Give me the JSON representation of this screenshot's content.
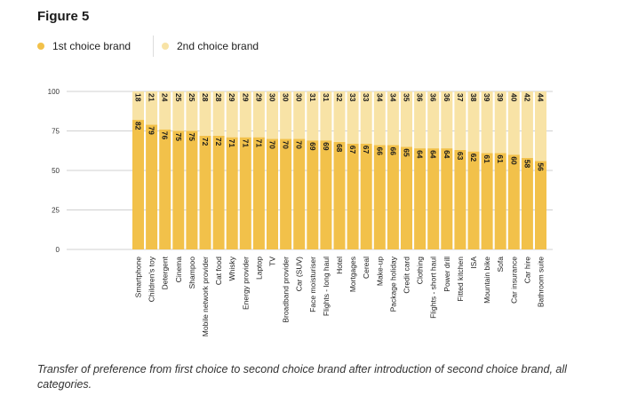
{
  "figure_label": "Figure 5",
  "caption": "Transfer of preference from first choice to second choice brand after introduction of second choice brand, all categories.",
  "colors": {
    "first": "#f2c14a",
    "second": "#f8e3a6",
    "grid": "#d0d0d0",
    "axis_text": "#333333"
  },
  "chart_data": {
    "type": "bar",
    "stacked": true,
    "categories": [
      "Smartphone",
      "Children's toy",
      "Detergent",
      "Cinema",
      "Shampoo",
      "Mobile network provider",
      "Cat food",
      "Whisky",
      "Energy provider",
      "Laptop",
      "TV",
      "Broadband provider",
      "Car (SUV)",
      "Face moisturiser",
      "Flights - long haul",
      "Hotel",
      "Mortgages",
      "Cereal",
      "Make-up",
      "Package holiday",
      "Credit card",
      "Clothing",
      "Flights - short haul",
      "Power drill",
      "Fitted kitchen",
      "ISA",
      "Mountain bike",
      "Sofa",
      "Car insurance",
      "Car hire",
      "Bathroom suite"
    ],
    "series": [
      {
        "name": "1st choice brand",
        "values": [
          82,
          79,
          76,
          75,
          75,
          72,
          72,
          71,
          71,
          71,
          70,
          70,
          70,
          69,
          69,
          68,
          67,
          67,
          66,
          66,
          65,
          64,
          64,
          64,
          63,
          62,
          61,
          61,
          60,
          58,
          56
        ]
      },
      {
        "name": "2nd choice brand",
        "values": [
          18,
          21,
          24,
          25,
          25,
          28,
          28,
          29,
          29,
          29,
          30,
          30,
          30,
          31,
          31,
          32,
          33,
          33,
          34,
          34,
          35,
          36,
          36,
          36,
          37,
          38,
          39,
          39,
          40,
          42,
          44
        ]
      }
    ],
    "yticks": [
      0,
      25,
      50,
      75,
      100
    ],
    "ylim": [
      0,
      100
    ],
    "grid": true,
    "legend_position": "top-left"
  }
}
